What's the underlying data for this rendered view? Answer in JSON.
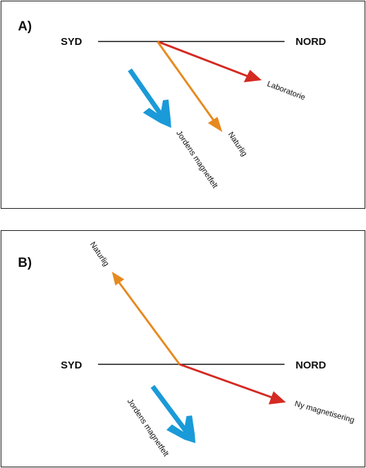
{
  "colors": {
    "laboratory": "#d42a22",
    "natural": "#e68a1f",
    "earth_field": "#1a9ad8",
    "line": "#111111"
  },
  "panel_a": {
    "label": "A)",
    "south": "SYD",
    "north": "NORD",
    "arrow_laboratory": "Laboratorie",
    "arrow_natural": "Naturlig",
    "arrow_earth_field": "Jordens magnetfelt"
  },
  "panel_b": {
    "label": "B)",
    "south": "SYD",
    "north": "NORD",
    "arrow_natural": "Naturlig",
    "arrow_new_magnetization": "Ny magnetisering",
    "arrow_earth_field": "Jordens magnetfelt"
  }
}
